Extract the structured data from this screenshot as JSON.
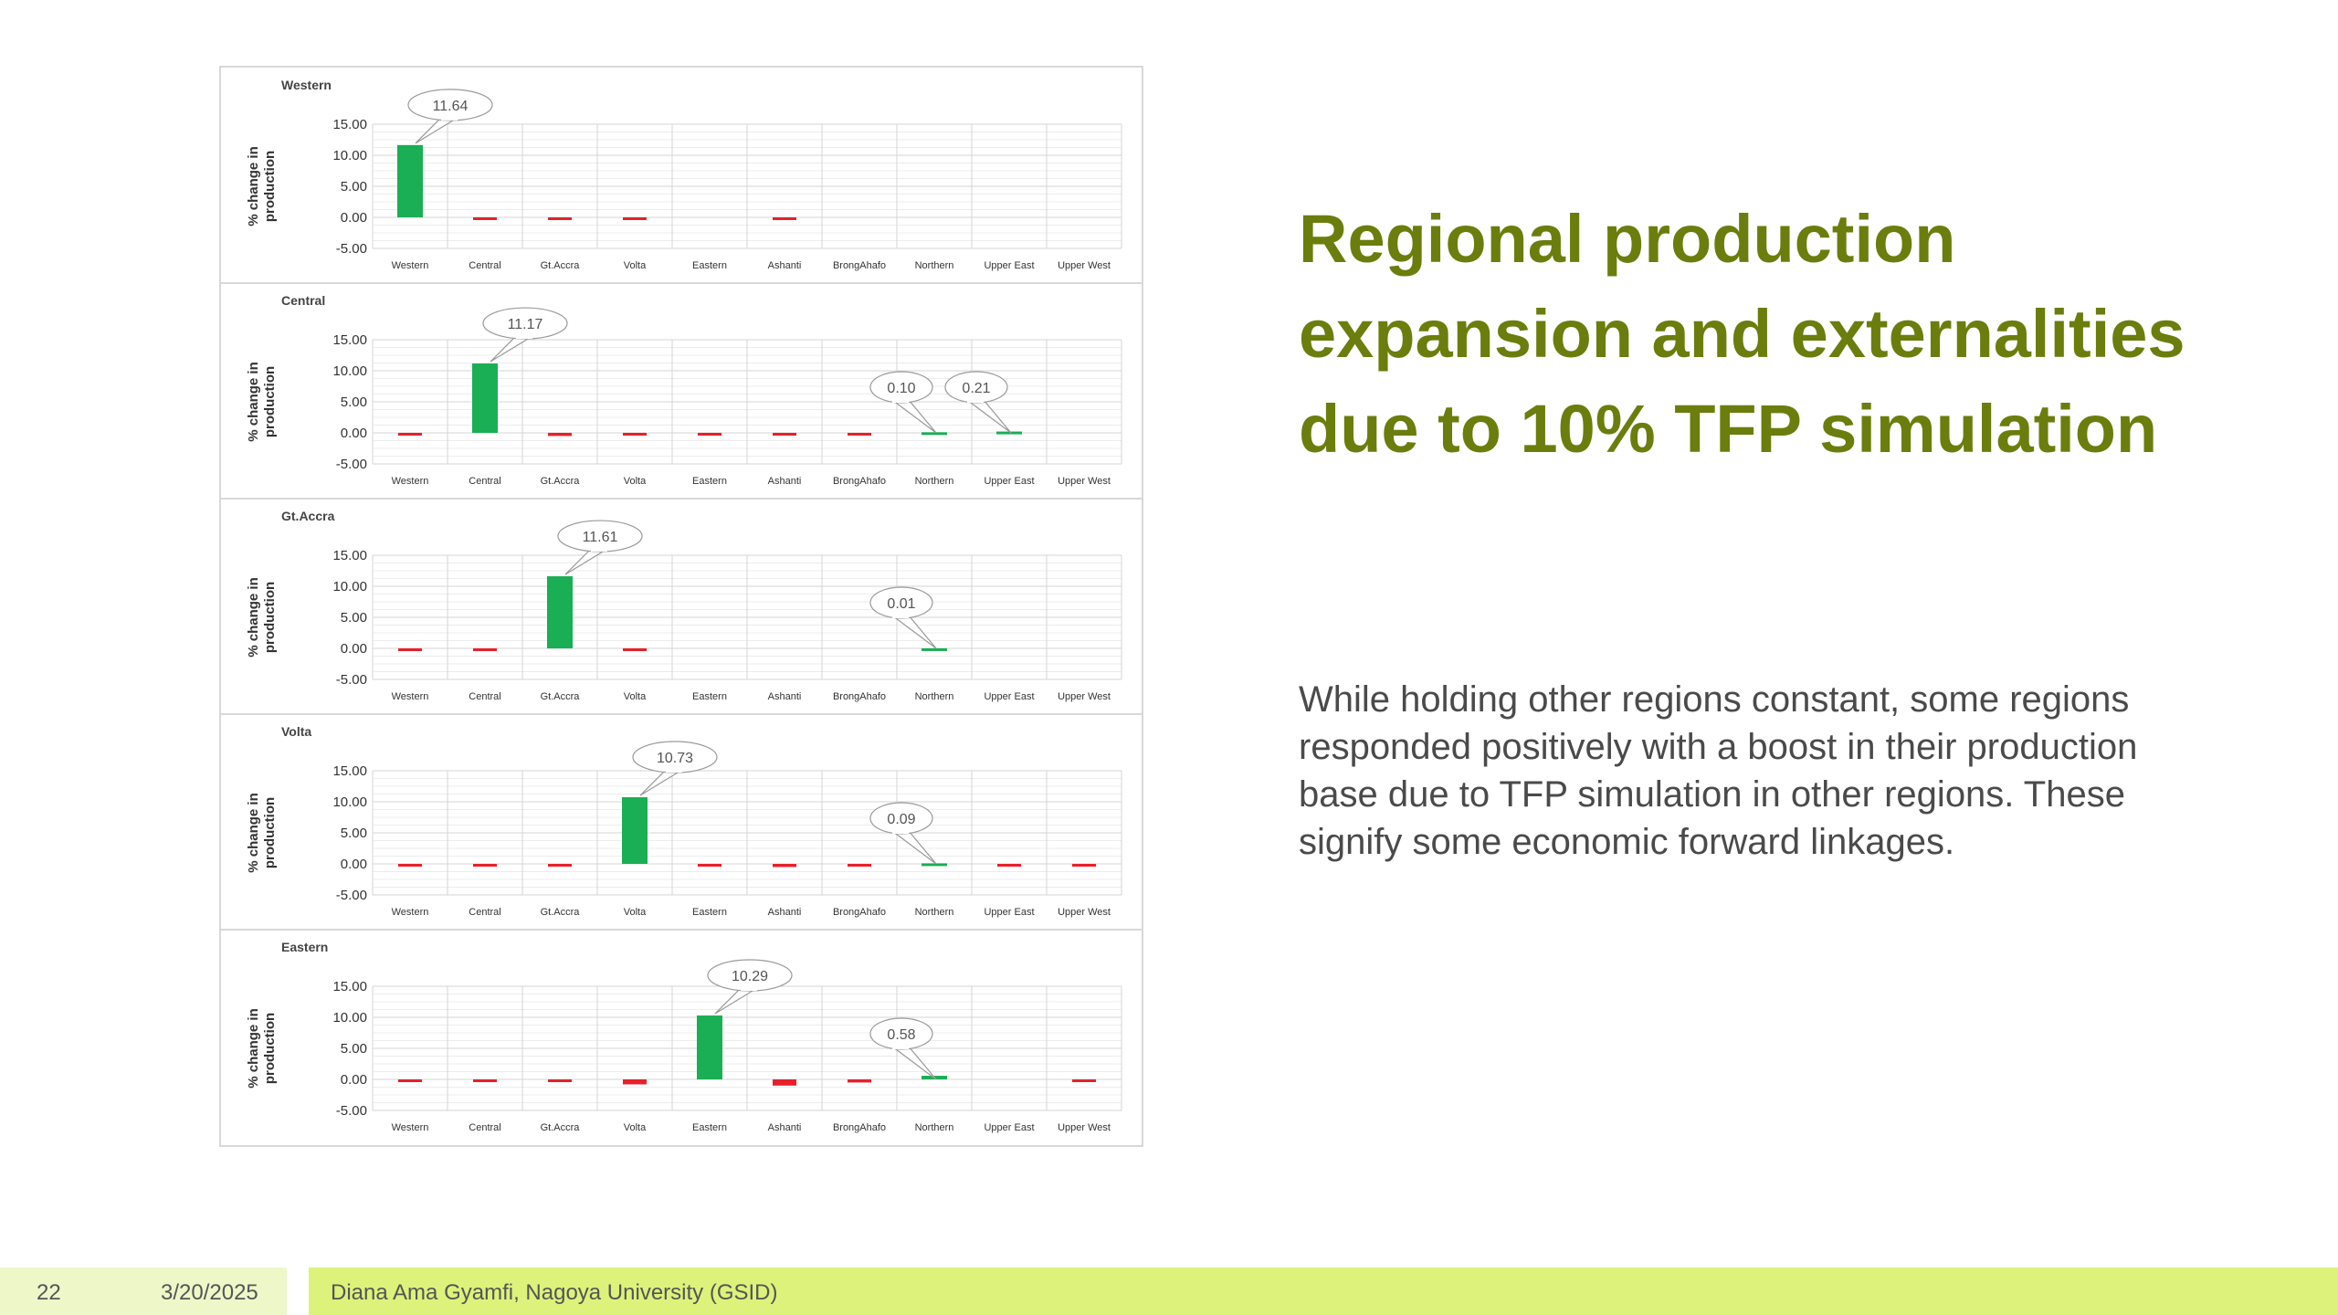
{
  "slide": {
    "title": "Regional production expansion and externalities due to 10% TFP simulation",
    "body": "While holding other regions constant, some regions responded positively with a boost in their production base due to TFP simulation in other regions. These signify some economic forward linkages."
  },
  "footer": {
    "page_number": "22",
    "date": "3/20/2025",
    "author": "Diana Ama Gyamfi, Nagoya University (GSID)"
  },
  "colors": {
    "title": "#6b7d0c",
    "positive_bar": "#1aae55",
    "negative_bar": "#e8202a",
    "footer_light": "#eef7c8",
    "footer_accent": "#ddf27b"
  },
  "chart_data": [
    {
      "type": "bar",
      "title": "Western",
      "ylabel": "% change in production",
      "categories": [
        "Western",
        "Central",
        "Gt.Accra",
        "Volta",
        "Eastern",
        "Ashanti",
        "BrongAhafo",
        "Northern",
        "Upper East",
        "Upper West"
      ],
      "values": [
        11.64,
        -0.2,
        -0.4,
        -0.3,
        0,
        -0.1,
        0,
        0,
        0,
        0
      ],
      "yticks": [
        "15.00",
        "10.00",
        "5.00",
        "0.00",
        "-5.00"
      ],
      "ylim": [
        -5,
        15
      ],
      "callouts": [
        {
          "category": "Western",
          "label": "11.64"
        }
      ]
    },
    {
      "type": "bar",
      "title": "Central",
      "ylabel": "% change in production",
      "categories": [
        "Western",
        "Central",
        "Gt.Accra",
        "Volta",
        "Eastern",
        "Ashanti",
        "BrongAhafo",
        "Northern",
        "Upper East",
        "Upper West"
      ],
      "values": [
        -0.3,
        11.17,
        -0.5,
        -0.3,
        -0.1,
        -0.1,
        -0.1,
        0.1,
        0.21,
        0
      ],
      "yticks": [
        "15.00",
        "10.00",
        "5.00",
        "0.00",
        "-5.00"
      ],
      "ylim": [
        -5,
        15
      ],
      "callouts": [
        {
          "category": "Central",
          "label": "11.17"
        },
        {
          "category": "Northern",
          "label": "0.10"
        },
        {
          "category": "Upper East",
          "label": "0.21"
        }
      ]
    },
    {
      "type": "bar",
      "title": "Gt.Accra",
      "ylabel": "% change in production",
      "categories": [
        "Western",
        "Central",
        "Gt.Accra",
        "Volta",
        "Eastern",
        "Ashanti",
        "BrongAhafo",
        "Northern",
        "Upper East",
        "Upper West"
      ],
      "values": [
        -0.1,
        -0.1,
        11.61,
        -0.1,
        0,
        0,
        0,
        0.01,
        0,
        0
      ],
      "yticks": [
        "15.00",
        "10.00",
        "5.00",
        "0.00",
        "-5.00"
      ],
      "ylim": [
        -5,
        15
      ],
      "callouts": [
        {
          "category": "Gt.Accra",
          "label": "11.61"
        },
        {
          "category": "Northern",
          "label": "0.01"
        }
      ]
    },
    {
      "type": "bar",
      "title": "Volta",
      "ylabel": "% change in production",
      "categories": [
        "Western",
        "Central",
        "Gt.Accra",
        "Volta",
        "Eastern",
        "Ashanti",
        "BrongAhafo",
        "Northern",
        "Upper East",
        "Upper West"
      ],
      "values": [
        -0.3,
        -0.3,
        -0.4,
        10.73,
        -0.1,
        -0.5,
        -0.4,
        0.09,
        -0.3,
        -0.3
      ],
      "yticks": [
        "15.00",
        "10.00",
        "5.00",
        "0.00",
        "-5.00"
      ],
      "ylim": [
        -5,
        15
      ],
      "callouts": [
        {
          "category": "Volta",
          "label": "10.73"
        },
        {
          "category": "Northern",
          "label": "0.09"
        }
      ]
    },
    {
      "type": "bar",
      "title": "Eastern",
      "ylabel": "% change in production",
      "categories": [
        "Western",
        "Central",
        "Gt.Accra",
        "Volta",
        "Eastern",
        "Ashanti",
        "BrongAhafo",
        "Northern",
        "Upper East",
        "Upper West"
      ],
      "values": [
        -0.3,
        -0.4,
        -0.4,
        -0.8,
        10.29,
        -1.0,
        -0.5,
        0.58,
        0,
        -0.4
      ],
      "yticks": [
        "15.00",
        "10.00",
        "5.00",
        "0.00",
        "-5.00"
      ],
      "ylim": [
        -5,
        15
      ],
      "callouts": [
        {
          "category": "Eastern",
          "label": "10.29"
        },
        {
          "category": "Northern",
          "label": "0.58"
        }
      ]
    }
  ]
}
